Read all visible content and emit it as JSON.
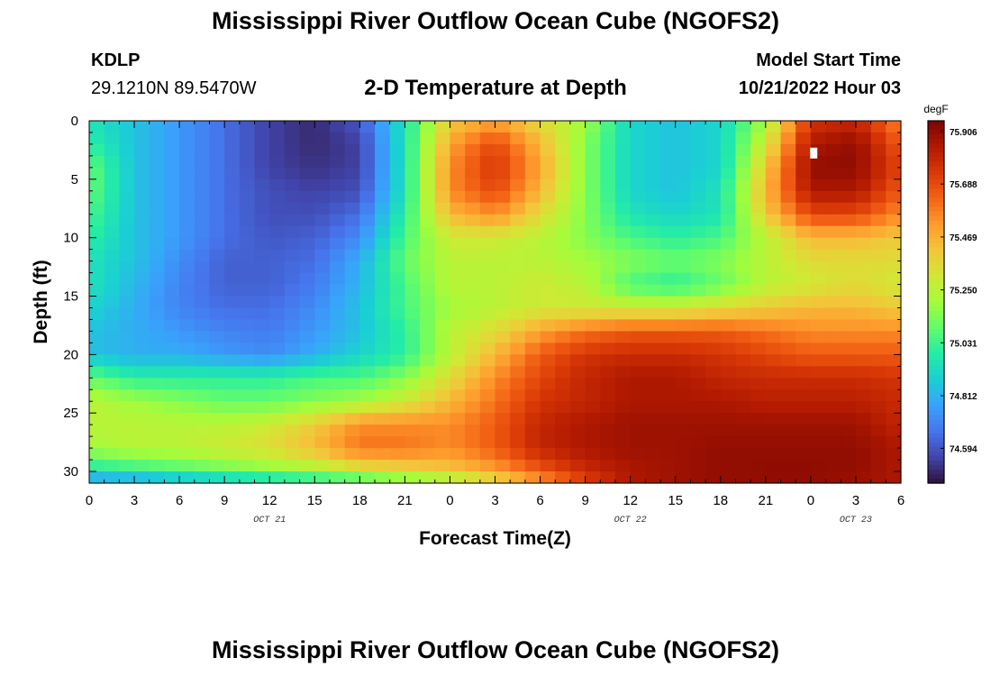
{
  "title": "Mississippi River Outflow Ocean Cube (NGOFS2)",
  "title_repeat": "Mississippi River Outflow Ocean Cube (NGOFS2)",
  "station": {
    "id": "KDLP",
    "coords": "29.1210N  89.5470W"
  },
  "subtitle": "2-D Temperature at Depth",
  "model": {
    "label": "Model Start Time",
    "start": "10/21/2022 Hour 03"
  },
  "chart_data": {
    "type": "heatmap",
    "xlabel": "Forecast Time(Z)",
    "ylabel": "Depth (ft)",
    "x_tick_labels": [
      "0",
      "3",
      "6",
      "9",
      "12",
      "15",
      "18",
      "21",
      "0",
      "3",
      "6",
      "9",
      "12",
      "15",
      "18",
      "21",
      "0",
      "3",
      "6"
    ],
    "date_labels": [
      {
        "text": "OCT 21",
        "hours_from_start": 12
      },
      {
        "text": "OCT 22",
        "hours_from_start": 36
      },
      {
        "text": "OCT 23",
        "hours_from_start": 51
      }
    ],
    "x_range_hours": [
      0,
      54
    ],
    "y_ticks": [
      0,
      5,
      10,
      15,
      20,
      25,
      30
    ],
    "ylim": [
      0,
      31
    ],
    "depth_levels_ft": [
      0,
      2,
      4,
      6,
      8,
      10,
      12,
      14,
      16,
      18,
      20,
      22,
      24,
      26,
      28,
      30,
      31
    ],
    "time_hours": [
      0,
      3,
      6,
      9,
      12,
      15,
      18,
      21,
      24,
      27,
      30,
      33,
      36,
      39,
      42,
      45,
      48,
      51,
      54
    ],
    "values_degF": [
      [
        74.95,
        74.85,
        74.75,
        74.65,
        74.55,
        74.5,
        74.6,
        74.95,
        75.4,
        75.5,
        75.35,
        75.2,
        74.9,
        74.85,
        74.9,
        75.2,
        75.75,
        75.8,
        75.55
      ],
      [
        75.0,
        74.85,
        74.75,
        74.65,
        74.55,
        74.5,
        74.55,
        74.95,
        75.5,
        75.7,
        75.45,
        75.15,
        74.9,
        74.85,
        74.9,
        75.3,
        75.85,
        75.9,
        75.65
      ],
      [
        75.1,
        74.85,
        74.75,
        74.65,
        74.55,
        74.52,
        74.55,
        74.95,
        75.55,
        75.75,
        75.5,
        75.15,
        74.9,
        74.85,
        74.9,
        75.4,
        75.9,
        75.91,
        75.7
      ],
      [
        75.1,
        74.85,
        74.75,
        74.65,
        74.58,
        74.55,
        74.58,
        74.95,
        75.55,
        75.7,
        75.45,
        75.15,
        74.9,
        74.85,
        74.95,
        75.45,
        75.85,
        75.85,
        75.65
      ],
      [
        75.05,
        74.85,
        74.75,
        74.65,
        74.58,
        74.58,
        74.65,
        75.0,
        75.45,
        75.55,
        75.35,
        75.15,
        74.95,
        74.9,
        74.95,
        75.4,
        75.7,
        75.7,
        75.55
      ],
      [
        75.0,
        74.85,
        74.75,
        74.65,
        74.6,
        74.62,
        74.72,
        75.05,
        75.3,
        75.3,
        75.25,
        75.15,
        75.05,
        75.0,
        75.05,
        75.25,
        75.45,
        75.45,
        75.4
      ],
      [
        74.95,
        74.85,
        74.72,
        74.62,
        74.62,
        74.65,
        74.8,
        75.1,
        75.25,
        75.25,
        75.25,
        75.2,
        75.15,
        75.1,
        75.15,
        75.25,
        75.35,
        75.35,
        75.35
      ],
      [
        74.95,
        74.82,
        74.7,
        74.62,
        74.62,
        74.68,
        74.82,
        75.05,
        75.25,
        75.25,
        75.3,
        75.25,
        75.05,
        75.0,
        75.1,
        75.25,
        75.3,
        75.35,
        75.3
      ],
      [
        74.9,
        74.8,
        74.7,
        74.65,
        74.65,
        74.72,
        74.85,
        75.05,
        75.2,
        75.25,
        75.3,
        75.3,
        75.3,
        75.3,
        75.35,
        75.4,
        75.45,
        75.45,
        75.4
      ],
      [
        74.85,
        74.8,
        74.75,
        74.7,
        74.68,
        74.75,
        74.85,
        75.0,
        75.25,
        75.35,
        75.5,
        75.6,
        75.65,
        75.65,
        75.65,
        75.6,
        75.55,
        75.55,
        75.55
      ],
      [
        74.85,
        74.8,
        74.8,
        74.75,
        74.72,
        74.8,
        74.9,
        75.0,
        75.25,
        75.45,
        75.65,
        75.75,
        75.78,
        75.78,
        75.75,
        75.7,
        75.65,
        75.65,
        75.65
      ],
      [
        75.1,
        75.0,
        75.0,
        75.0,
        75.0,
        75.05,
        75.05,
        75.15,
        75.35,
        75.55,
        75.7,
        75.8,
        75.85,
        75.85,
        75.8,
        75.78,
        75.78,
        75.78,
        75.75
      ],
      [
        75.25,
        75.2,
        75.15,
        75.1,
        75.1,
        75.15,
        75.2,
        75.3,
        75.45,
        75.6,
        75.75,
        75.8,
        75.85,
        75.85,
        75.85,
        75.82,
        75.82,
        75.82,
        75.78
      ],
      [
        75.25,
        75.25,
        75.25,
        75.25,
        75.3,
        75.4,
        75.55,
        75.55,
        75.55,
        75.65,
        75.8,
        75.85,
        75.88,
        75.88,
        75.88,
        75.88,
        75.88,
        75.88,
        75.8
      ],
      [
        75.2,
        75.25,
        75.25,
        75.3,
        75.35,
        75.45,
        75.6,
        75.6,
        75.55,
        75.65,
        75.8,
        75.85,
        75.88,
        75.88,
        75.9,
        75.9,
        75.9,
        75.9,
        75.85
      ],
      [
        74.95,
        75.0,
        75.05,
        75.1,
        75.15,
        75.2,
        75.3,
        75.35,
        75.4,
        75.5,
        75.65,
        75.78,
        75.85,
        75.88,
        75.9,
        75.91,
        75.91,
        75.9,
        75.85
      ],
      [
        74.7,
        74.7,
        74.75,
        74.8,
        74.85,
        74.9,
        74.95,
        75.05,
        75.15,
        75.3,
        75.5,
        75.7,
        75.85,
        75.88,
        75.9,
        75.9,
        75.9,
        75.88,
        75.85
      ]
    ],
    "colorbar": {
      "unit": "degF",
      "tick_labels": [
        "75.906",
        "75.688",
        "75.469",
        "75.250",
        "75.031",
        "74.812",
        "74.594"
      ],
      "min": 74.45,
      "max": 75.95,
      "colors": [
        "#30123b",
        "#4145ab",
        "#4675ed",
        "#39a2fc",
        "#1bcfd4",
        "#24eca6",
        "#61fc6c",
        "#a4fc3b",
        "#d1e834",
        "#f3c63a",
        "#fe9b2d",
        "#f36315",
        "#d93806",
        "#b11901",
        "#7a0403"
      ]
    },
    "marker_note": ""
  }
}
